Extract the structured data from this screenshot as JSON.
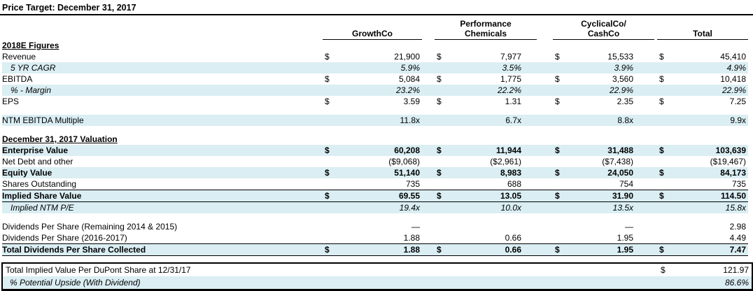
{
  "title": "Price Target: December 31, 2017",
  "colors": {
    "row_highlight": "#daeef3"
  },
  "table": {
    "column_headers": [
      {
        "line1": "",
        "line2": "GrowthCo"
      },
      {
        "line1": "Performance",
        "line2": "Chemicals"
      },
      {
        "line1": "CyclicalCo/",
        "line2": "CashCo"
      },
      {
        "line1": "",
        "line2": "Total"
      }
    ],
    "rows": [
      {
        "kind": "section",
        "label": "2018E Figures"
      },
      {
        "label": "Revenue",
        "dollar": true,
        "values": [
          "21,900",
          "7,977",
          "15,533",
          "45,410"
        ]
      },
      {
        "label": "5 YR CAGR",
        "indent": true,
        "italic": true,
        "shaded": true,
        "values": [
          "5.9%",
          "3.5%",
          "3.9%",
          "4.9%"
        ]
      },
      {
        "label": "EBITDA",
        "dollar": true,
        "values": [
          "5,084",
          "1,775",
          "3,560",
          "10,418"
        ]
      },
      {
        "label": "% - Margin",
        "indent": true,
        "italic": true,
        "shaded": true,
        "values": [
          "23.2%",
          "22.2%",
          "22.9%",
          "22.9%"
        ]
      },
      {
        "label": "EPS",
        "dollar": true,
        "values": [
          "3.59",
          "1.31",
          "2.35",
          "7.25"
        ]
      },
      {
        "kind": "spacer"
      },
      {
        "label": "NTM EBITDA Multiple",
        "shaded": true,
        "values": [
          "11.8x",
          "6.7x",
          "8.8x",
          "9.9x"
        ]
      },
      {
        "kind": "spacer"
      },
      {
        "kind": "section",
        "label": "December 31, 2017 Valuation"
      },
      {
        "label": "Enterprise Value",
        "bold": true,
        "dollar": true,
        "shaded": true,
        "values": [
          "60,208",
          "11,944",
          "31,488",
          "103,639"
        ]
      },
      {
        "label": "Net Debt and other",
        "values": [
          "($9,068)",
          "($2,961)",
          "($7,438)",
          "($19,467)"
        ]
      },
      {
        "label": "Equity Value",
        "bold": true,
        "dollar": true,
        "shaded": true,
        "values": [
          "51,140",
          "8,983",
          "24,050",
          "84,173"
        ]
      },
      {
        "label": "Shares Outstanding",
        "values": [
          "735",
          "688",
          "754",
          "735"
        ]
      },
      {
        "label": "Implied Share Value",
        "bold": true,
        "dollar": true,
        "shaded": true,
        "border": "topbottom",
        "values": [
          "69.55",
          "13.05",
          "31.90",
          "114.50"
        ]
      },
      {
        "label": "Implied NTM P/E",
        "indent": true,
        "italic": true,
        "shaded": true,
        "values": [
          "19.4x",
          "10.0x",
          "13.5x",
          "15.8x"
        ]
      },
      {
        "kind": "spacer"
      },
      {
        "label": "Dividends Per Share (Remaining 2014 & 2015)",
        "values": [
          "—",
          "",
          "—",
          "2.98"
        ]
      },
      {
        "label": "Dividends Per Share (2016-2017)",
        "values": [
          "1.88",
          "0.66",
          "1.95",
          "4.49"
        ]
      },
      {
        "label": "Total Dividends Per Share Collected",
        "bold": true,
        "dollar": true,
        "shaded": true,
        "border": "topbottom",
        "values": [
          "1.88",
          "0.66",
          "1.95",
          "7.47"
        ]
      }
    ]
  },
  "summary_box": {
    "rows": [
      {
        "label": "Total Implied Value Per DuPont Share at 12/31/17",
        "prefix": "$",
        "value": "121.97"
      },
      {
        "label": "% Potential Upside (With Dividend)",
        "prefix": "",
        "value": "86.6%"
      }
    ]
  }
}
